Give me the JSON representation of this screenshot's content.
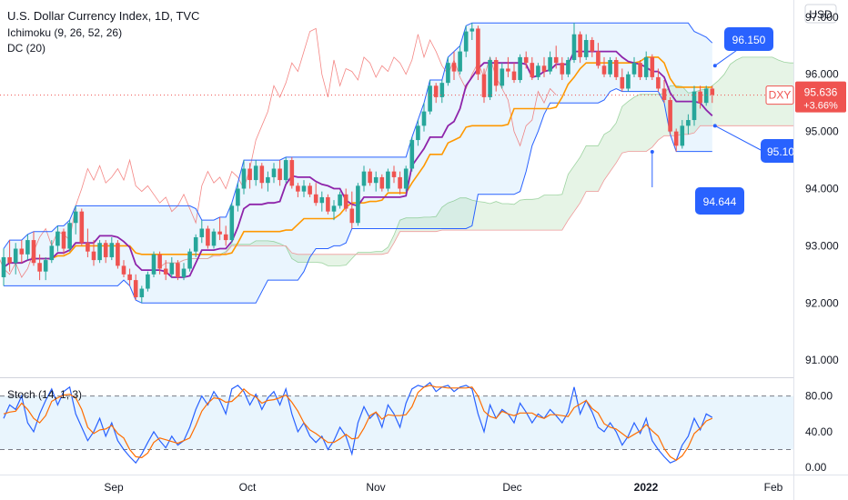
{
  "header": {
    "title": "U.S. Dollar Currency Index, 1D, TVC",
    "ichimoku_label": "Ichimoku (9, 26, 52, 26)",
    "dc_label": "DC (20)",
    "stoch_label": "Stoch (14, 1, 3)",
    "currency_label": "USD"
  },
  "price_scale": {
    "ticks": [
      "97.000",
      "96.000",
      "95.000",
      "94.000",
      "93.000",
      "92.000",
      "91.000"
    ],
    "symbol_tag": "DXY",
    "last_price": "95.636",
    "change": "+3.66%"
  },
  "stoch_scale": {
    "ticks": [
      "80.00",
      "40.00",
      "0.00"
    ]
  },
  "time_axis": {
    "labels": [
      "Sep",
      "Oct",
      "Nov",
      "Dec",
      "2022",
      "Feb"
    ]
  },
  "callouts": {
    "upper": "96.150",
    "middle": "95.10",
    "lower": "94.644"
  },
  "colors": {
    "up_candle": "#26a69a",
    "down_candle": "#ef5350",
    "donchian_line": "#2962ff",
    "donchian_fill": "#e3f2fd",
    "conversion_line": "#8e24aa",
    "base_line": "#ff9800",
    "lagging_span": "#ef5350",
    "kumo_bull": "#a5d6a7",
    "kumo_bear": "#ef9a9a",
    "stoch_k": "#2962ff",
    "stoch_d": "#ff6d00",
    "callout_fill": "#2962ff",
    "price_tag": "#ef5350"
  },
  "chart_data": {
    "type": "candlestick",
    "y_range": [
      90.7,
      97.3
    ],
    "stoch_range": [
      -8,
      100
    ],
    "stoch_levels": [
      80,
      20
    ],
    "last_price": 95.636,
    "candles": [
      [
        92.45,
        92.95,
        92.3,
        92.8
      ],
      [
        92.8,
        93.1,
        92.55,
        92.7
      ],
      [
        92.7,
        93.05,
        92.5,
        92.95
      ],
      [
        92.95,
        93.1,
        92.7,
        92.85
      ],
      [
        92.85,
        93.2,
        92.75,
        93.1
      ],
      [
        93.1,
        93.25,
        92.65,
        92.7
      ],
      [
        92.7,
        92.85,
        92.4,
        92.55
      ],
      [
        92.55,
        92.8,
        92.4,
        92.75
      ],
      [
        92.75,
        93.1,
        92.7,
        93.0
      ],
      [
        93.0,
        93.35,
        92.9,
        93.25
      ],
      [
        93.25,
        93.3,
        92.85,
        92.95
      ],
      [
        92.95,
        93.45,
        92.9,
        93.4
      ],
      [
        93.4,
        93.7,
        93.2,
        93.6
      ],
      [
        93.6,
        93.65,
        93.0,
        93.05
      ],
      [
        93.05,
        93.3,
        92.8,
        92.9
      ],
      [
        92.9,
        93.1,
        92.65,
        92.75
      ],
      [
        92.75,
        93.1,
        92.7,
        93.05
      ],
      [
        93.05,
        93.1,
        92.7,
        92.8
      ],
      [
        92.8,
        93.15,
        92.75,
        93.05
      ],
      [
        93.05,
        93.1,
        92.6,
        92.65
      ],
      [
        92.65,
        92.75,
        92.45,
        92.5
      ],
      [
        92.5,
        92.6,
        92.3,
        92.4
      ],
      [
        92.4,
        92.5,
        92.05,
        92.1
      ],
      [
        92.1,
        92.3,
        92.0,
        92.25
      ],
      [
        92.25,
        92.55,
        92.2,
        92.5
      ],
      [
        92.5,
        92.9,
        92.45,
        92.85
      ],
      [
        92.85,
        92.9,
        92.5,
        92.6
      ],
      [
        92.6,
        92.75,
        92.4,
        92.5
      ],
      [
        92.5,
        92.8,
        92.45,
        92.7
      ],
      [
        92.7,
        92.75,
        92.4,
        92.45
      ],
      [
        92.45,
        92.7,
        92.4,
        92.6
      ],
      [
        92.6,
        92.95,
        92.55,
        92.9
      ],
      [
        92.9,
        93.2,
        92.8,
        93.15
      ],
      [
        93.15,
        93.45,
        93.05,
        93.3
      ],
      [
        93.3,
        93.35,
        92.95,
        93.0
      ],
      [
        93.0,
        93.3,
        92.95,
        93.25
      ],
      [
        93.25,
        93.5,
        93.1,
        93.2
      ],
      [
        93.2,
        93.35,
        93.0,
        93.1
      ],
      [
        93.1,
        93.75,
        93.05,
        93.7
      ],
      [
        93.7,
        94.1,
        93.6,
        94.0
      ],
      [
        94.0,
        94.5,
        93.9,
        94.35
      ],
      [
        94.35,
        94.45,
        94.0,
        94.15
      ],
      [
        94.15,
        94.5,
        94.05,
        94.4
      ],
      [
        94.4,
        94.45,
        94.0,
        94.1
      ],
      [
        94.1,
        94.3,
        93.95,
        94.2
      ],
      [
        94.2,
        94.45,
        94.1,
        94.35
      ],
      [
        94.35,
        94.5,
        94.05,
        94.15
      ],
      [
        94.15,
        94.55,
        94.1,
        94.5
      ],
      [
        94.5,
        94.55,
        94.0,
        94.05
      ],
      [
        94.05,
        94.1,
        93.85,
        93.95
      ],
      [
        93.95,
        94.15,
        93.85,
        94.05
      ],
      [
        94.05,
        94.1,
        93.85,
        93.9
      ],
      [
        93.9,
        94.1,
        93.7,
        93.75
      ],
      [
        93.75,
        93.95,
        93.6,
        93.85
      ],
      [
        93.85,
        93.9,
        93.55,
        93.6
      ],
      [
        93.6,
        93.8,
        93.45,
        93.7
      ],
      [
        93.7,
        93.95,
        93.65,
        93.9
      ],
      [
        93.9,
        94.0,
        93.6,
        93.65
      ],
      [
        93.65,
        93.95,
        93.3,
        93.4
      ],
      [
        93.4,
        94.1,
        93.35,
        94.05
      ],
      [
        94.05,
        94.4,
        93.95,
        94.3
      ],
      [
        94.3,
        94.35,
        94.05,
        94.1
      ],
      [
        94.1,
        94.3,
        93.95,
        94.2
      ],
      [
        94.2,
        94.25,
        93.95,
        94.0
      ],
      [
        94.0,
        94.35,
        93.95,
        94.3
      ],
      [
        94.3,
        94.4,
        94.1,
        94.2
      ],
      [
        94.2,
        94.3,
        93.9,
        94.0
      ],
      [
        94.0,
        94.4,
        93.95,
        94.35
      ],
      [
        94.35,
        94.9,
        94.3,
        94.85
      ],
      [
        94.85,
        95.2,
        94.75,
        95.1
      ],
      [
        95.1,
        95.5,
        95.0,
        95.35
      ],
      [
        95.35,
        95.9,
        95.3,
        95.8
      ],
      [
        95.8,
        95.85,
        95.5,
        95.6
      ],
      [
        95.6,
        95.9,
        95.5,
        95.85
      ],
      [
        95.85,
        96.3,
        95.8,
        96.2
      ],
      [
        96.2,
        96.4,
        95.9,
        96.05
      ],
      [
        96.05,
        96.5,
        96.0,
        96.4
      ],
      [
        96.4,
        96.85,
        96.3,
        96.75
      ],
      [
        96.75,
        96.9,
        96.6,
        96.8
      ],
      [
        96.8,
        96.85,
        95.9,
        96.0
      ],
      [
        96.0,
        96.1,
        95.5,
        95.6
      ],
      [
        95.6,
        96.3,
        95.55,
        96.25
      ],
      [
        96.25,
        96.3,
        95.7,
        95.8
      ],
      [
        95.8,
        96.2,
        95.75,
        96.1
      ],
      [
        96.1,
        96.3,
        95.95,
        96.05
      ],
      [
        96.05,
        96.2,
        95.85,
        95.9
      ],
      [
        95.9,
        96.35,
        95.85,
        96.3
      ],
      [
        96.3,
        96.4,
        96.1,
        96.2
      ],
      [
        96.2,
        96.3,
        95.9,
        95.95
      ],
      [
        95.95,
        96.2,
        95.9,
        96.15
      ],
      [
        96.15,
        96.3,
        95.95,
        96.05
      ],
      [
        96.05,
        96.4,
        96.0,
        96.3
      ],
      [
        96.3,
        96.5,
        96.1,
        96.2
      ],
      [
        96.2,
        96.3,
        95.9,
        96.0
      ],
      [
        96.0,
        96.3,
        95.95,
        96.25
      ],
      [
        96.25,
        96.9,
        96.2,
        96.7
      ],
      [
        96.7,
        96.75,
        96.2,
        96.3
      ],
      [
        96.3,
        96.7,
        96.25,
        96.6
      ],
      [
        96.6,
        96.65,
        96.3,
        96.4
      ],
      [
        96.4,
        96.55,
        96.1,
        96.15
      ],
      [
        96.15,
        96.3,
        95.95,
        96.0
      ],
      [
        96.0,
        96.3,
        95.95,
        96.25
      ],
      [
        96.25,
        96.3,
        95.9,
        95.95
      ],
      [
        95.95,
        96.1,
        95.7,
        95.75
      ],
      [
        95.75,
        96.05,
        95.7,
        96.0
      ],
      [
        96.0,
        96.3,
        95.95,
        96.2
      ],
      [
        96.2,
        96.25,
        95.9,
        95.95
      ],
      [
        95.95,
        96.4,
        95.9,
        96.3
      ],
      [
        96.3,
        96.35,
        95.9,
        95.95
      ],
      [
        95.95,
        96.1,
        95.7,
        95.75
      ],
      [
        95.75,
        95.9,
        95.5,
        95.55
      ],
      [
        95.55,
        95.6,
        94.95,
        95.0
      ],
      [
        95.0,
        95.05,
        94.65,
        94.75
      ],
      [
        94.75,
        95.2,
        94.7,
        95.1
      ],
      [
        95.1,
        95.3,
        94.95,
        95.2
      ],
      [
        95.2,
        95.8,
        95.1,
        95.7
      ],
      [
        95.7,
        95.8,
        95.4,
        95.5
      ],
      [
        95.5,
        95.8,
        95.45,
        95.75
      ],
      [
        95.75,
        95.8,
        95.5,
        95.64
      ]
    ],
    "stoch_k": [
      55,
      70,
      65,
      80,
      50,
      40,
      60,
      75,
      88,
      70,
      85,
      90,
      60,
      45,
      30,
      40,
      55,
      35,
      50,
      30,
      20,
      12,
      5,
      15,
      28,
      40,
      30,
      22,
      35,
      25,
      30,
      45,
      65,
      80,
      70,
      85,
      75,
      60,
      88,
      92,
      85,
      70,
      82,
      65,
      78,
      85,
      70,
      88,
      60,
      40,
      50,
      35,
      28,
      35,
      20,
      30,
      45,
      35,
      15,
      50,
      68,
      55,
      62,
      45,
      70,
      60,
      45,
      72,
      88,
      92,
      90,
      95,
      85,
      90,
      92,
      85,
      90,
      92,
      88,
      60,
      40,
      70,
      55,
      65,
      60,
      50,
      72,
      62,
      50,
      60,
      55,
      65,
      58,
      50,
      62,
      90,
      60,
      75,
      62,
      45,
      40,
      50,
      40,
      25,
      35,
      50,
      38,
      55,
      30,
      20,
      12,
      5,
      8,
      25,
      35,
      55,
      42,
      60,
      56
    ],
    "stoch_d": [
      60,
      62,
      63,
      72,
      65,
      55,
      50,
      58,
      74,
      78,
      81,
      82,
      78,
      65,
      45,
      38,
      42,
      43,
      47,
      38,
      33,
      20,
      12,
      11,
      16,
      28,
      33,
      31,
      29,
      27,
      30,
      33,
      47,
      63,
      72,
      78,
      77,
      73,
      74,
      80,
      88,
      82,
      79,
      72,
      75,
      76,
      78,
      81,
      73,
      63,
      50,
      42,
      38,
      33,
      28,
      28,
      32,
      37,
      32,
      33,
      44,
      58,
      62,
      54,
      59,
      58,
      58,
      59,
      68,
      84,
      90,
      92,
      90,
      90,
      89,
      89,
      89,
      89,
      90,
      80,
      63,
      57,
      55,
      63,
      60,
      58,
      61,
      61,
      61,
      57,
      55,
      59,
      59,
      58,
      57,
      67,
      71,
      75,
      66,
      61,
      49,
      45,
      43,
      38,
      33,
      37,
      41,
      48,
      41,
      35,
      21,
      12,
      8,
      13,
      23,
      38,
      44,
      52,
      55
    ]
  }
}
